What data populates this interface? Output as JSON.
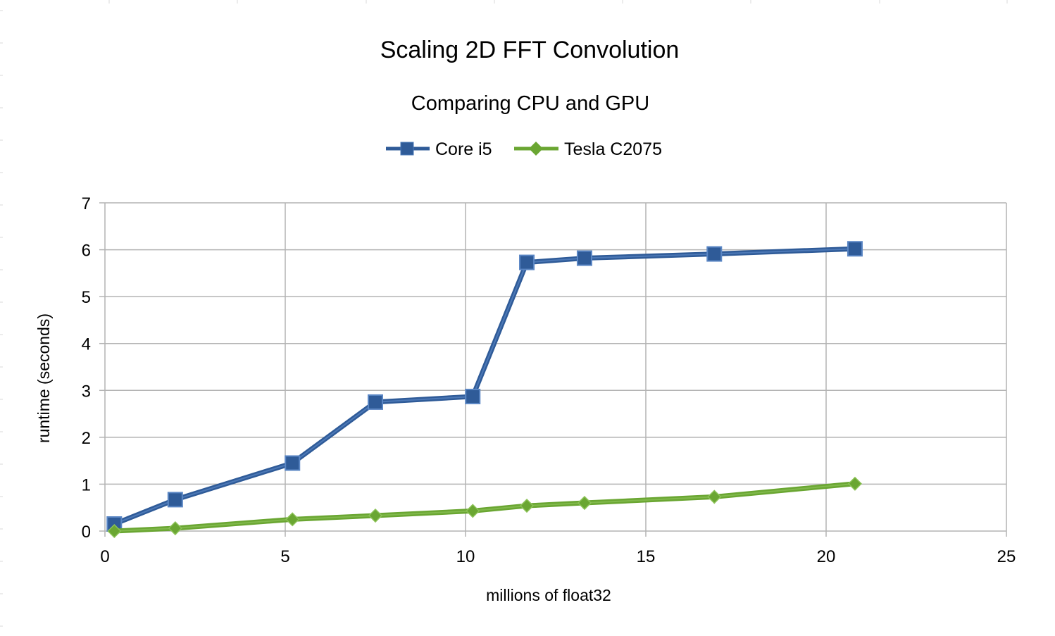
{
  "chart_data": {
    "type": "line",
    "title": "Scaling 2D FFT Convolution",
    "subtitle": "Comparing CPU and GPU",
    "xlabel": "millions of float32",
    "ylabel": "runtime (seconds)",
    "xlim": [
      0,
      25
    ],
    "ylim": [
      0,
      7
    ],
    "xticks": [
      "0",
      "5",
      "10",
      "15",
      "20",
      "25"
    ],
    "yticks": [
      "0",
      "1",
      "2",
      "3",
      "4",
      "5",
      "6",
      "7"
    ],
    "grid": true,
    "legend_position": "top",
    "series": [
      {
        "name": "Core i5",
        "color": "#2f5b98",
        "marker": "square",
        "x": [
          0.26,
          1.95,
          5.2,
          7.5,
          10.2,
          11.7,
          13.3,
          16.9,
          20.8
        ],
        "y": [
          0.15,
          0.67,
          1.45,
          2.75,
          2.87,
          5.73,
          5.82,
          5.91,
          6.02
        ]
      },
      {
        "name": "Tesla C2075",
        "color": "#6aa632",
        "marker": "diamond",
        "x": [
          0.26,
          1.95,
          5.2,
          7.5,
          10.2,
          11.7,
          13.3,
          16.9,
          20.8
        ],
        "y": [
          0.0,
          0.06,
          0.25,
          0.33,
          0.43,
          0.54,
          0.6,
          0.73,
          1.01
        ]
      }
    ]
  }
}
